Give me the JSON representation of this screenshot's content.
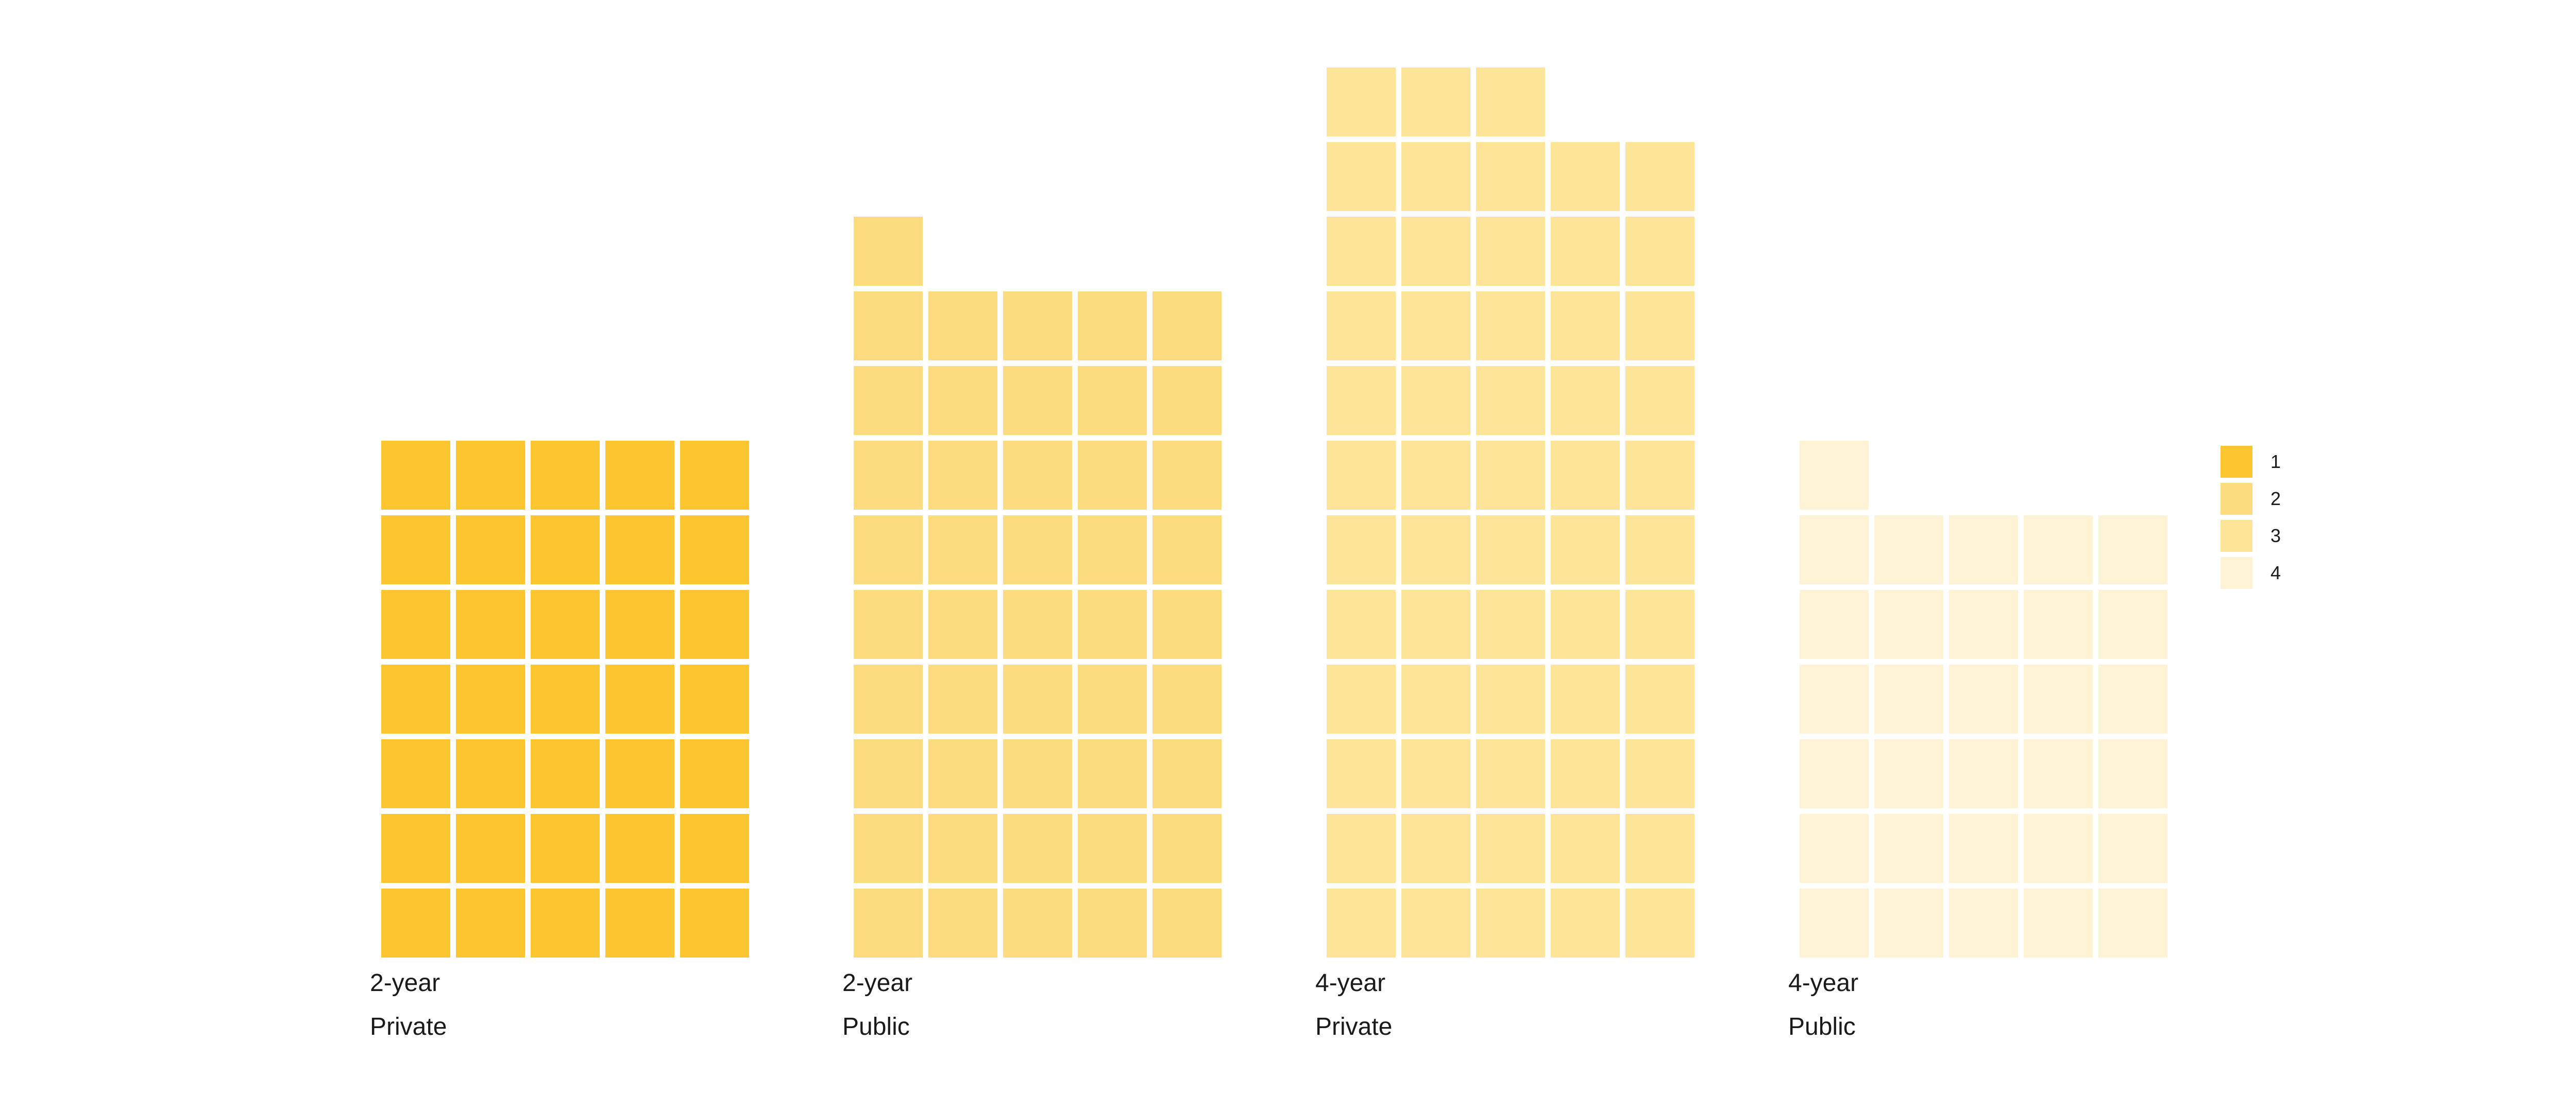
{
  "chart_data": {
    "type": "waffle",
    "units_per_row": 5,
    "panels": [
      {
        "label_line1": "2-year",
        "label_line2": "Private",
        "value": 35,
        "group": "1",
        "color": "#FDC52F"
      },
      {
        "label_line1": "2-year",
        "label_line2": "Public",
        "value": 46,
        "group": "2",
        "color": "#FDDC80"
      },
      {
        "label_line1": "4-year",
        "label_line2": "Private",
        "value": 58,
        "group": "3",
        "color": "#FEE499"
      },
      {
        "label_line1": "4-year",
        "label_line2": "Public",
        "value": 31,
        "group": "4",
        "color": "#FEF3D5"
      }
    ],
    "legend": {
      "position": "right",
      "items": [
        {
          "label": "1",
          "color": "#FDC52F"
        },
        {
          "label": "2",
          "color": "#FDDC80"
        },
        {
          "label": "3",
          "color": "#FEE499"
        },
        {
          "label": "4",
          "color": "#FEF3D5"
        }
      ]
    }
  }
}
